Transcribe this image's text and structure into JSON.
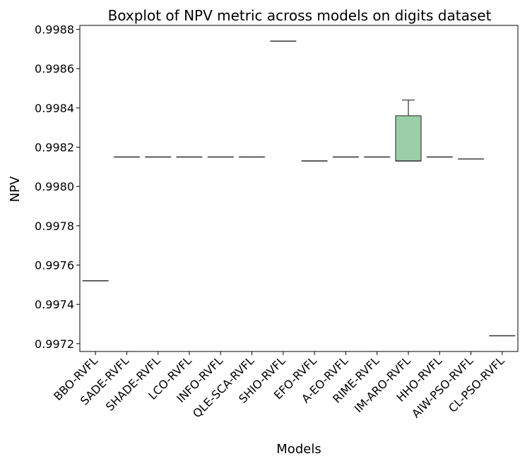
{
  "chart_data": {
    "type": "box",
    "title": "Boxplot of NPV metric across models on digits dataset",
    "xlabel": "Models",
    "ylabel": "NPV",
    "ylim": [
      0.99716,
      0.99882
    ],
    "yticks": [
      0.9972,
      0.9974,
      0.9976,
      0.9978,
      0.998,
      0.9982,
      0.9984,
      0.9986,
      0.9988
    ],
    "ytick_labels": [
      "0.9972",
      "0.9974",
      "0.9976",
      "0.9978",
      "0.9980",
      "0.9982",
      "0.9984",
      "0.9986",
      "0.9988"
    ],
    "grid": false,
    "categories": [
      "BBO-RVFL",
      "SADE-RVFL",
      "SHADE-RVFL",
      "LCO-RVFL",
      "INFO-RVFL",
      "QLE-SCA-RVFL",
      "SHIO-RVFL",
      "EFO-RVFL",
      "A-EO-RVFL",
      "RIME-RVFL",
      "IM-ARO-RVFL",
      "HHO-RVFL",
      "AIW-PSO-RVFL",
      "CL-PSO-RVFL"
    ],
    "series": [
      {
        "box": {
          "min": 0.99752,
          "q1": 0.99752,
          "median": 0.99752,
          "q3": 0.99752,
          "max": 0.99752
        },
        "color": "#d8b0ad"
      },
      {
        "box": {
          "min": 0.99815,
          "q1": 0.99815,
          "median": 0.99815,
          "q3": 0.99815,
          "max": 0.99815
        },
        "color": "#d9b999"
      },
      {
        "box": {
          "min": 0.99815,
          "q1": 0.99815,
          "median": 0.99815,
          "q3": 0.99815,
          "max": 0.99815
        },
        "color": "#c9c88b"
      },
      {
        "box": {
          "min": 0.99815,
          "q1": 0.99815,
          "median": 0.99815,
          "q3": 0.99815,
          "max": 0.99815
        },
        "color": "#afcc8e"
      },
      {
        "box": {
          "min": 0.99815,
          "q1": 0.99815,
          "median": 0.99815,
          "q3": 0.99815,
          "max": 0.99815
        },
        "color": "#97d4a3"
      },
      {
        "box": {
          "min": 0.99815,
          "q1": 0.99815,
          "median": 0.99815,
          "q3": 0.99815,
          "max": 0.99815
        },
        "color": "#97d4b6"
      },
      {
        "box": {
          "min": 0.99874,
          "q1": 0.99874,
          "median": 0.99874,
          "q3": 0.99874,
          "max": 0.99874
        },
        "color": "#98d3cd"
      },
      {
        "box": {
          "min": 0.99813,
          "q1": 0.99813,
          "median": 0.99813,
          "q3": 0.99813,
          "max": 0.99813
        },
        "color": "#a0c4dc"
      },
      {
        "box": {
          "min": 0.99815,
          "q1": 0.99815,
          "median": 0.99815,
          "q3": 0.99815,
          "max": 0.99815
        },
        "color": "#b2bbe3"
      },
      {
        "box": {
          "min": 0.99815,
          "q1": 0.99815,
          "median": 0.99815,
          "q3": 0.99815,
          "max": 0.99815
        },
        "color": "#c9b3e3"
      },
      {
        "box": {
          "min": 0.99813,
          "q1": 0.99813,
          "median": 0.99813,
          "q3": 0.99836,
          "max": 0.99844
        },
        "color": "#9bcfa8"
      },
      {
        "box": {
          "min": 0.99815,
          "q1": 0.99815,
          "median": 0.99815,
          "q3": 0.99815,
          "max": 0.99815
        },
        "color": "#dcb1da"
      },
      {
        "box": {
          "min": 0.99814,
          "q1": 0.99814,
          "median": 0.99814,
          "q3": 0.99814,
          "max": 0.99814
        },
        "color": "#e2afc6"
      },
      {
        "box": {
          "min": 0.99724,
          "q1": 0.99724,
          "median": 0.99724,
          "q3": 0.99724,
          "max": 0.99724
        },
        "color": "#e0b0b4"
      }
    ]
  }
}
